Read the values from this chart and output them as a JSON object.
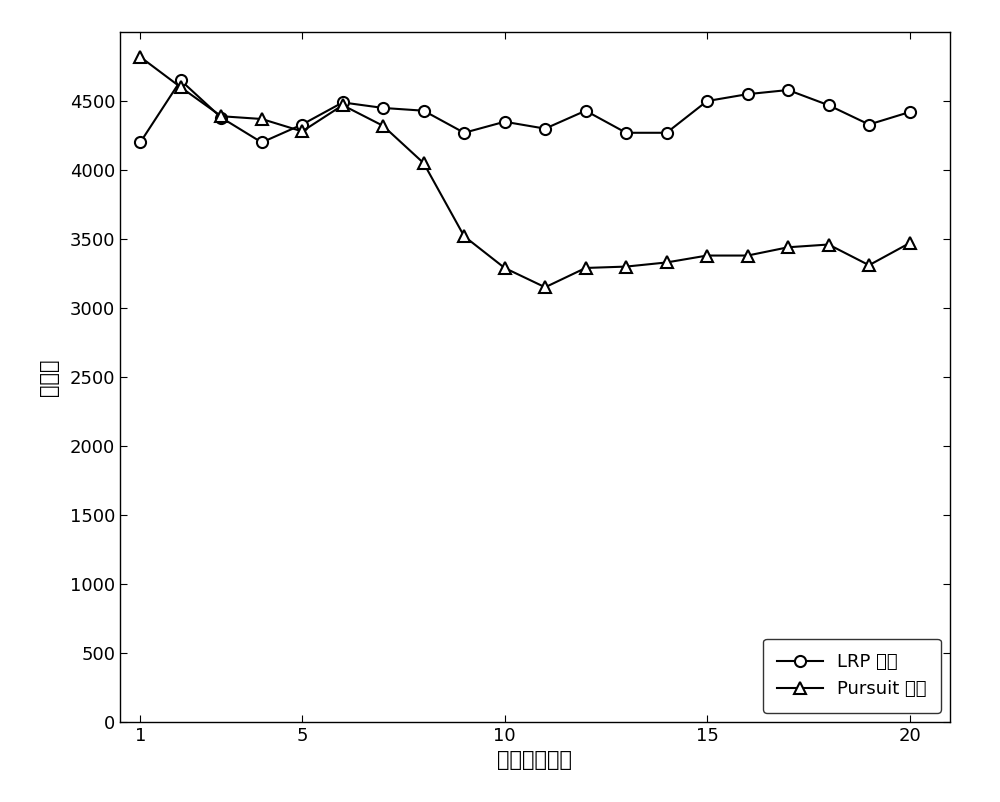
{
  "lrp_x": [
    1,
    2,
    3,
    4,
    5,
    6,
    7,
    8,
    9,
    10,
    11,
    12,
    13,
    14,
    15,
    16,
    17,
    18,
    19,
    20
  ],
  "lrp_y": [
    4200,
    4650,
    4380,
    4200,
    4330,
    4490,
    4450,
    4430,
    4270,
    4350,
    4300,
    4430,
    4270,
    4270,
    4500,
    4550,
    4580,
    4470,
    4330,
    4420
  ],
  "pursuit_x": [
    1,
    2,
    3,
    4,
    5,
    6,
    7,
    8,
    9,
    10,
    11,
    12,
    13,
    14,
    15,
    16,
    17,
    18,
    19,
    20
  ],
  "pursuit_y": [
    4820,
    4600,
    4390,
    4370,
    4280,
    4470,
    4320,
    4050,
    3520,
    3290,
    3150,
    3290,
    3300,
    3330,
    3380,
    3380,
    3440,
    3460,
    3310,
    3470
  ],
  "xlabel": "节点发现次数",
  "ylabel": "时隙数",
  "lrp_label": "LRP 算法",
  "pursuit_label": "Pursuit 算法",
  "xlim": [
    0.5,
    21
  ],
  "ylim": [
    0,
    5000
  ],
  "yticks": [
    0,
    500,
    1000,
    1500,
    2000,
    2500,
    3000,
    3500,
    4000,
    4500
  ],
  "xticks": [
    1,
    5,
    10,
    15,
    20
  ],
  "line_color": "#000000",
  "bg_color": "#ffffff",
  "marker_size": 8,
  "line_width": 1.5,
  "font_size_label": 15,
  "font_size_tick": 13,
  "font_size_legend": 13
}
